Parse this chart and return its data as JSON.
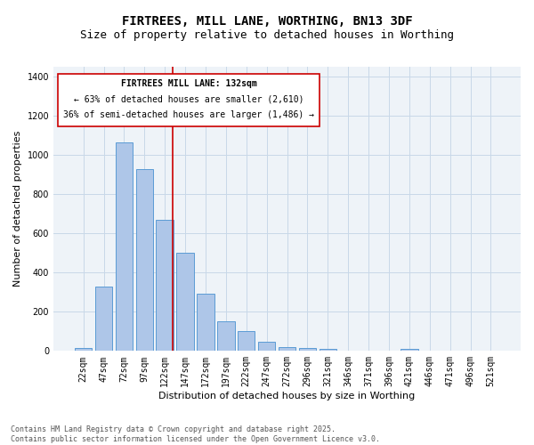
{
  "title1": "FIRTREES, MILL LANE, WORTHING, BN13 3DF",
  "title2": "Size of property relative to detached houses in Worthing",
  "xlabel": "Distribution of detached houses by size in Worthing",
  "ylabel": "Number of detached properties",
  "categories": [
    "22sqm",
    "47sqm",
    "72sqm",
    "97sqm",
    "122sqm",
    "147sqm",
    "172sqm",
    "197sqm",
    "222sqm",
    "247sqm",
    "272sqm",
    "296sqm",
    "321sqm",
    "346sqm",
    "371sqm",
    "396sqm",
    "421sqm",
    "446sqm",
    "471sqm",
    "496sqm",
    "521sqm"
  ],
  "values": [
    15,
    330,
    1065,
    930,
    670,
    500,
    290,
    150,
    100,
    45,
    20,
    15,
    12,
    0,
    0,
    0,
    10,
    0,
    0,
    0,
    0
  ],
  "bar_color": "#aec6e8",
  "bar_edge_color": "#5b9bd5",
  "grid_color": "#c8d8e8",
  "background_color": "#eef3f8",
  "vline_color": "#cc0000",
  "annotation_line1": "FIRTREES MILL LANE: 132sqm",
  "annotation_line2": "← 63% of detached houses are smaller (2,610)",
  "annotation_line3": "36% of semi-detached houses are larger (1,486) →",
  "annotation_box_color": "#ffffff",
  "annotation_box_edge_color": "#cc0000",
  "ylim": [
    0,
    1450
  ],
  "yticks": [
    0,
    200,
    400,
    600,
    800,
    1000,
    1200,
    1400
  ],
  "footnote": "Contains HM Land Registry data © Crown copyright and database right 2025.\nContains public sector information licensed under the Open Government Licence v3.0.",
  "title_fontsize": 10,
  "subtitle_fontsize": 9,
  "axis_fontsize": 8,
  "tick_fontsize": 7,
  "annot_fontsize": 7
}
